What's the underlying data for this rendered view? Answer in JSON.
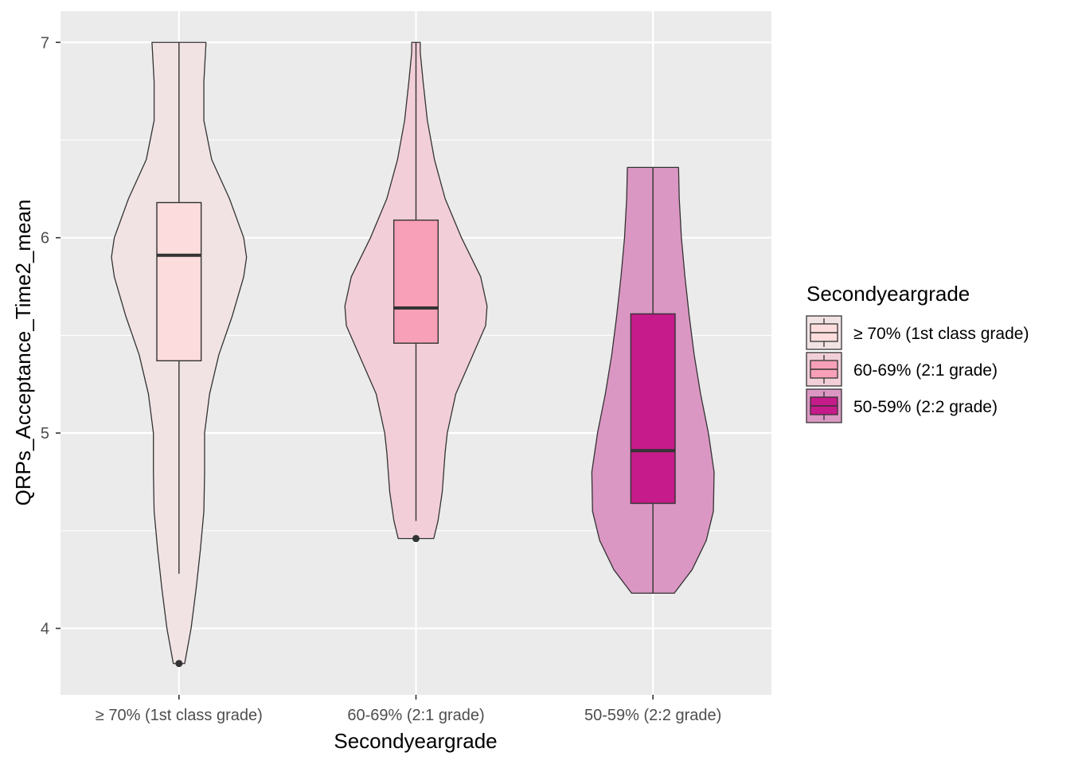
{
  "chart_data": {
    "type": "violin",
    "xlabel": "Secondyeargrade",
    "ylabel": "QRPs_Acceptance_Time2_mean",
    "ylim": [
      3.66,
      7.16
    ],
    "yticks": [
      4,
      5,
      6,
      7
    ],
    "ytick_labels": [
      "4",
      "5",
      "6",
      "7"
    ],
    "categories": [
      "≥ 70% (1st class grade)",
      "60-69% (2:1 grade)",
      "50-59% (2:2 grade)"
    ],
    "legend": {
      "title": "Secondyeargrade",
      "position": "right",
      "labels": [
        "≥ 70% (1st class grade)",
        "60-69% (2:1 grade)",
        "50-59% (2:2 grade)"
      ]
    },
    "grid": true,
    "series": [
      {
        "category": "≥ 70% (1st class grade)",
        "violin_color": "#f1e3e4",
        "box_color": "#fcdcdc",
        "min": 3.82,
        "max": 7.0,
        "q1": 5.37,
        "median": 5.91,
        "q3": 6.18,
        "whisker_low": 4.28,
        "whisker_high": 7.0,
        "outliers": [
          3.82
        ],
        "density_profile": [
          [
            3.82,
            0.08
          ],
          [
            3.9,
            0.12
          ],
          [
            4.0,
            0.17
          ],
          [
            4.2,
            0.24
          ],
          [
            4.4,
            0.3
          ],
          [
            4.6,
            0.35
          ],
          [
            4.8,
            0.36
          ],
          [
            5.0,
            0.36
          ],
          [
            5.2,
            0.43
          ],
          [
            5.4,
            0.56
          ],
          [
            5.6,
            0.75
          ],
          [
            5.8,
            0.91
          ],
          [
            5.9,
            0.95
          ],
          [
            6.0,
            0.91
          ],
          [
            6.2,
            0.71
          ],
          [
            6.4,
            0.46
          ],
          [
            6.6,
            0.35
          ],
          [
            6.8,
            0.35
          ],
          [
            7.0,
            0.38
          ]
        ]
      },
      {
        "category": "60-69% (2:1 grade)",
        "violin_color": "#f2cfd8",
        "box_color": "#f8a0b7",
        "min": 4.46,
        "max": 7.0,
        "q1": 5.46,
        "median": 5.64,
        "q3": 6.09,
        "whisker_low": 4.55,
        "whisker_high": 7.0,
        "outliers": [
          4.46
        ],
        "density_profile": [
          [
            4.46,
            0.25
          ],
          [
            4.55,
            0.31
          ],
          [
            4.7,
            0.37
          ],
          [
            4.9,
            0.41
          ],
          [
            5.0,
            0.44
          ],
          [
            5.2,
            0.56
          ],
          [
            5.4,
            0.8
          ],
          [
            5.55,
            0.98
          ],
          [
            5.65,
            1.0
          ],
          [
            5.8,
            0.91
          ],
          [
            6.0,
            0.64
          ],
          [
            6.2,
            0.41
          ],
          [
            6.4,
            0.26
          ],
          [
            6.6,
            0.16
          ],
          [
            6.8,
            0.1
          ],
          [
            6.95,
            0.06
          ],
          [
            7.0,
            0.06
          ]
        ]
      },
      {
        "category": "50-59% (2:2 grade)",
        "violin_color": "#db97c3",
        "box_color": "#c61b8a",
        "min": 4.18,
        "max": 6.36,
        "q1": 4.64,
        "median": 4.91,
        "q3": 5.61,
        "whisker_low": 4.18,
        "whisker_high": 6.36,
        "outliers": [],
        "density_profile": [
          [
            4.18,
            0.3
          ],
          [
            4.3,
            0.55
          ],
          [
            4.45,
            0.75
          ],
          [
            4.6,
            0.85
          ],
          [
            4.8,
            0.86
          ],
          [
            5.0,
            0.78
          ],
          [
            5.2,
            0.67
          ],
          [
            5.4,
            0.58
          ],
          [
            5.6,
            0.51
          ],
          [
            5.8,
            0.45
          ],
          [
            6.0,
            0.4
          ],
          [
            6.2,
            0.37
          ],
          [
            6.36,
            0.36
          ]
        ]
      }
    ]
  }
}
